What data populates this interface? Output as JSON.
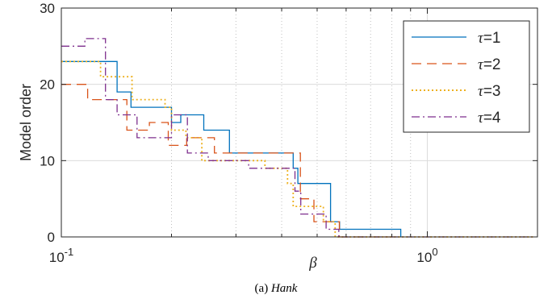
{
  "caption": {
    "prefix": "(a)",
    "name": "Hank"
  },
  "chart_data": {
    "type": "line",
    "step": true,
    "xscale": "log",
    "xlim": [
      0.1,
      2.0
    ],
    "ylim": [
      0,
      30
    ],
    "xlabel": "β",
    "ylabel": "Model order",
    "xticks": [
      {
        "value": 0.1,
        "base": "10",
        "exp": "-1"
      },
      {
        "value": 1,
        "base": "10",
        "exp": "0"
      }
    ],
    "yticks": [
      0,
      10,
      20,
      30
    ],
    "grid": true,
    "legend_position": "top-right",
    "series": [
      {
        "name": "τ=1",
        "color": "#0072BD",
        "dash": "",
        "x": [
          0.1,
          0.142,
          0.142,
          0.155,
          0.155,
          0.2,
          0.2,
          0.212,
          0.212,
          0.245,
          0.245,
          0.288,
          0.288,
          0.43,
          0.43,
          0.443,
          0.443,
          0.544,
          0.544,
          0.576,
          0.576,
          0.606,
          0.606,
          0.846,
          0.846
        ],
        "y": [
          23,
          23,
          19,
          19,
          17,
          17,
          15,
          15,
          16,
          16,
          14,
          14,
          11,
          11,
          9,
          9,
          7,
          7,
          2,
          2,
          1,
          1,
          1,
          1,
          0
        ]
      },
      {
        "name": "τ=2",
        "color": "#D95319",
        "dash": "12,7",
        "x": [
          0.1,
          0.118,
          0.118,
          0.151,
          0.151,
          0.174,
          0.174,
          0.196,
          0.196,
          0.22,
          0.22,
          0.262,
          0.262,
          0.294,
          0.294,
          0.45,
          0.45,
          0.49,
          0.49,
          0.575,
          0.575,
          0.6,
          0.6,
          0.82
        ],
        "y": [
          20,
          20,
          18,
          18,
          14,
          14,
          15,
          15,
          12,
          12,
          13,
          13,
          11,
          11,
          11,
          11,
          5,
          5,
          2,
          2,
          0,
          0,
          0,
          0
        ]
      },
      {
        "name": "τ=3",
        "color": "#EDB120",
        "dash": "2,3",
        "x": [
          0.1,
          0.128,
          0.128,
          0.156,
          0.156,
          0.192,
          0.192,
          0.2,
          0.2,
          0.219,
          0.219,
          0.242,
          0.242,
          0.248,
          0.248,
          0.36,
          0.36,
          0.415,
          0.415,
          0.43,
          0.43,
          0.52,
          0.52,
          0.56,
          0.56,
          0.58,
          0.58,
          0.67,
          0.67,
          1.95
        ],
        "y": [
          23,
          23,
          21,
          21,
          18,
          18,
          17,
          17,
          14,
          14,
          13,
          13,
          10,
          10,
          10,
          10,
          9,
          9,
          7,
          7,
          4,
          4,
          2,
          2,
          0,
          0,
          0,
          0,
          0,
          0
        ]
      },
      {
        "name": "τ=4",
        "color": "#7E2F8E",
        "dash": "10,4,2,4",
        "x": [
          0.1,
          0.116,
          0.116,
          0.132,
          0.132,
          0.142,
          0.142,
          0.161,
          0.161,
          0.2,
          0.2,
          0.221,
          0.221,
          0.252,
          0.252,
          0.325,
          0.325,
          0.435,
          0.435,
          0.451,
          0.451,
          0.529,
          0.529,
          0.573,
          0.573,
          0.626,
          0.626,
          1.95
        ],
        "y": [
          25,
          25,
          26,
          26,
          18,
          18,
          16,
          16,
          13,
          13,
          16,
          16,
          11,
          11,
          10,
          10,
          9,
          9,
          6,
          6,
          3,
          3,
          1,
          1,
          0,
          0,
          0,
          0
        ]
      }
    ]
  }
}
